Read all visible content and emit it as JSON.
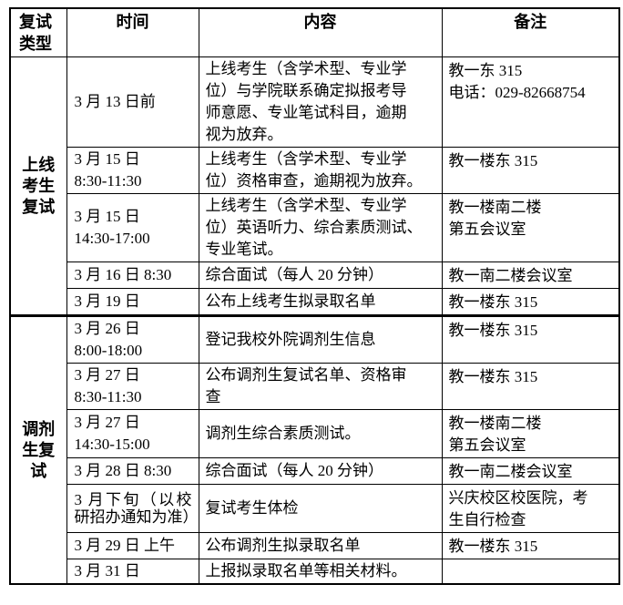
{
  "colors": {
    "background": "#ffffff",
    "text": "#000000",
    "border": "#000000"
  },
  "table": {
    "headers": [
      "复试\n类型",
      "时间",
      "内容",
      "备注"
    ],
    "sections": [
      {
        "type_label": "上线\n考生\n复试",
        "rows": [
          {
            "time": "3 月 13 日前",
            "content": "上线考生（含学术型、专业学\n位）与学院联系确定拟报考导\n师意愿、专业笔试科目，逾期\n视为放弃。",
            "note": "教一东 315\n电话：029-82668754"
          },
          {
            "time": "3 月 15 日\n8:30-11:30",
            "content": "上线考生（含学术型、专业学\n位）资格审查，逾期视为放弃。",
            "note": "教一楼东 315"
          },
          {
            "time": "3 月 15 日\n14:30-17:00",
            "content": "上线考生（含学术型、专业学\n位）英语听力、综合素质测试、\n专业笔试。",
            "note": "教一楼南二楼\n第五会议室"
          },
          {
            "time": "3 月 16 日 8:30",
            "content": "综合面试（每人 20 分钟）",
            "note": "教一南二楼会议室"
          },
          {
            "time": "3 月 19 日",
            "content": "公布上线考生拟录取名单",
            "note": "教一楼东 315"
          }
        ]
      },
      {
        "type_label": "调剂\n生复\n试",
        "rows": [
          {
            "time": "3 月 26 日\n8:00-18:00",
            "content": "登记我校外院调剂生信息",
            "note": "教一楼东 315"
          },
          {
            "time": "3 月 27 日\n8:30-11:30",
            "content": "公布调剂生复试名单、资格审\n查",
            "note": "教一楼东 315"
          },
          {
            "time": "3 月 27 日\n14:30-15:00",
            "content": "调剂生综合素质测试。",
            "note": "教一楼南二楼\n第五会议室"
          },
          {
            "time": "3 月 28 日 8:30",
            "content": "综合面试（每人 20 分钟）",
            "note": "教一南二楼会议室"
          },
          {
            "time": "3 月下旬（以校研招办通知为准）",
            "content": "复试考生体检",
            "note": "兴庆校区校医院，考\n生自行检查"
          },
          {
            "time": "3 月 29 日  上午",
            "content": "公布调剂生拟录取名单",
            "note": "教一楼东 315"
          },
          {
            "time": "3 月 31 日",
            "content": "上报拟录取名单等相关材料。",
            "note": ""
          }
        ]
      }
    ]
  }
}
